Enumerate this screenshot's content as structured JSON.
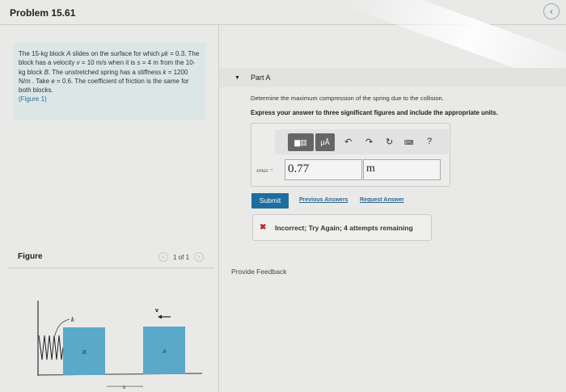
{
  "header": {
    "title": "Problem 15.61",
    "back_icon": "chevron-left-icon"
  },
  "problem": {
    "text_1": "The 15-kg block ",
    "A": "A",
    "text_2": " slides on the surface for which ",
    "mu": "μk",
    "text_3": " = 0.3. The block has a velocity ",
    "v": "v",
    "text_4": " = 10  m/s when it is ",
    "s": "s",
    "text_5": " = 4  m from the 10-kg block ",
    "B": "B",
    "text_6": ". The unstretched spring has a stiffness ",
    "k": "k",
    "text_7": " = 1200  N/m . Take ",
    "e": "e",
    "text_8": " = 0.6. The coefficient of friction is the same for both blocks.",
    "figure_link": "(Figure 1)"
  },
  "figure": {
    "label": "Figure",
    "pager": "1 of 1",
    "prev": "‹",
    "next": "›",
    "spring_label": "k",
    "block_b": "B",
    "block_a": "A",
    "velocity_label": "v",
    "distance_label": "s",
    "block_color": "#5aa9c8"
  },
  "part": {
    "label": "Part A",
    "question": "Determine the maximum compression of the spring due to the collision.",
    "instruction": "Express your answer to three significant figures and include the appropriate units.",
    "toolbar": {
      "units_button": "μÅ",
      "help": "?"
    },
    "var_label": "xmax =",
    "value": "0.77",
    "unit": "m",
    "submit": "Submit",
    "previous_answers": "Previous Answers",
    "request_answer": "Request Answer",
    "feedback": "Incorrect; Try Again; 4 attempts remaining"
  },
  "provide_feedback": "Provide Feedback"
}
